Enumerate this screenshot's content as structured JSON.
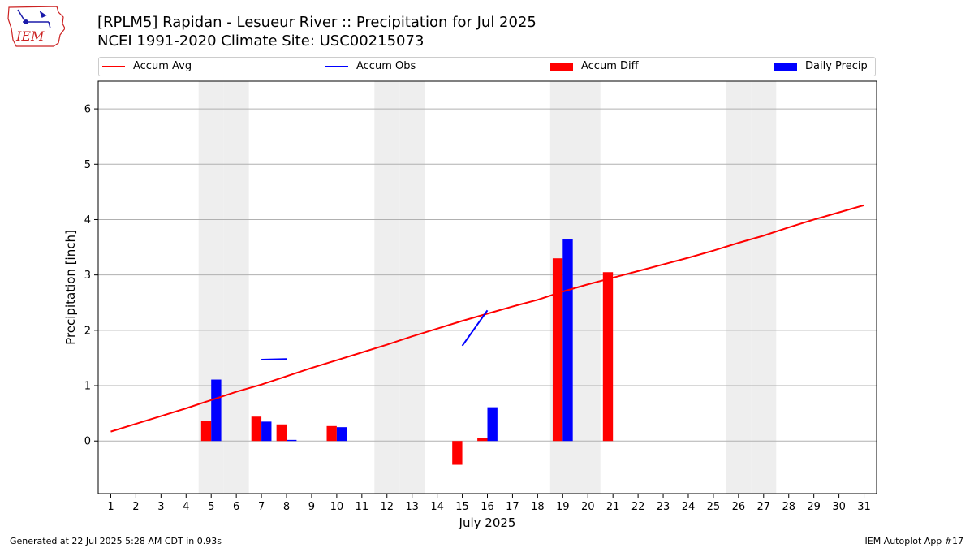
{
  "title_line1": "[RPLM5] Rapidan - Lesueur River :: Precipitation for Jul 2025",
  "title_line2": "NCEI 1991-2020 Climate Site: USC00215073",
  "logo_text": "IEM",
  "footer_left": "Generated at 22 Jul 2025 5:28 AM CDT in 0.93s",
  "footer_right": "IEM Autoplot App #17",
  "colors": {
    "avg": "#ff0000",
    "obs": "#0000ff",
    "diff": "#ff0000",
    "daily": "#0000ff",
    "weekend": "#eeeeee",
    "grid": "#b0b0b0"
  },
  "chart_data": {
    "type": "bar",
    "xlabel": "July 2025",
    "ylabel": "Precipitation [inch]",
    "xlim": [
      0.5,
      31.5
    ],
    "ylim": [
      -0.95,
      6.5
    ],
    "yticks": [
      0,
      1,
      2,
      3,
      4,
      5,
      6
    ],
    "grid": "horizontal",
    "legend_position": "top",
    "days": [
      1,
      2,
      3,
      4,
      5,
      6,
      7,
      8,
      9,
      10,
      11,
      12,
      13,
      14,
      15,
      16,
      17,
      18,
      19,
      20,
      21,
      22,
      23,
      24,
      25,
      26,
      27,
      28,
      29,
      30,
      31
    ],
    "weekend_days": [
      5,
      6,
      12,
      13,
      19,
      20,
      26,
      27
    ],
    "legend": [
      {
        "label": "Accum Avg",
        "kind": "line",
        "color": "#ff0000"
      },
      {
        "label": "Accum Obs",
        "kind": "line",
        "color": "#0000ff"
      },
      {
        "label": "Accum Diff",
        "kind": "bar",
        "color": "#ff0000"
      },
      {
        "label": "Daily Precip",
        "kind": "bar",
        "color": "#0000ff"
      }
    ],
    "series": [
      {
        "name": "Accum Avg",
        "kind": "line",
        "color": "#ff0000",
        "values": [
          0.17,
          0.31,
          0.45,
          0.59,
          0.74,
          0.89,
          1.02,
          1.17,
          1.32,
          1.46,
          1.6,
          1.74,
          1.89,
          2.03,
          2.17,
          2.3,
          2.43,
          2.55,
          2.7,
          2.83,
          2.95,
          3.07,
          3.19,
          3.31,
          3.44,
          3.58,
          3.71,
          3.86,
          4.0,
          4.13,
          4.26
        ]
      },
      {
        "name": "Accum Obs",
        "kind": "line",
        "color": "#0000ff",
        "values": [
          null,
          null,
          null,
          null,
          null,
          null,
          1.47,
          1.48,
          null,
          null,
          null,
          null,
          null,
          null,
          1.72,
          2.36,
          null,
          null,
          null,
          null,
          null,
          null,
          null,
          null,
          null,
          null,
          null,
          null,
          null,
          null,
          null
        ]
      },
      {
        "name": "Accum Diff",
        "kind": "bar",
        "color": "#ff0000",
        "values": [
          null,
          null,
          null,
          null,
          0.37,
          null,
          0.44,
          0.3,
          null,
          0.27,
          null,
          null,
          null,
          null,
          -0.43,
          0.05,
          null,
          null,
          3.3,
          null,
          3.05,
          null,
          null,
          null,
          null,
          null,
          null,
          null,
          null,
          null,
          null
        ]
      },
      {
        "name": "Daily Precip",
        "kind": "bar",
        "color": "#0000ff",
        "values": [
          null,
          null,
          null,
          null,
          1.11,
          null,
          0.35,
          0.02,
          null,
          0.25,
          null,
          null,
          null,
          null,
          null,
          0.61,
          null,
          null,
          3.64,
          null,
          null,
          null,
          null,
          null,
          null,
          null,
          null,
          null,
          null,
          null,
          null
        ]
      }
    ]
  }
}
